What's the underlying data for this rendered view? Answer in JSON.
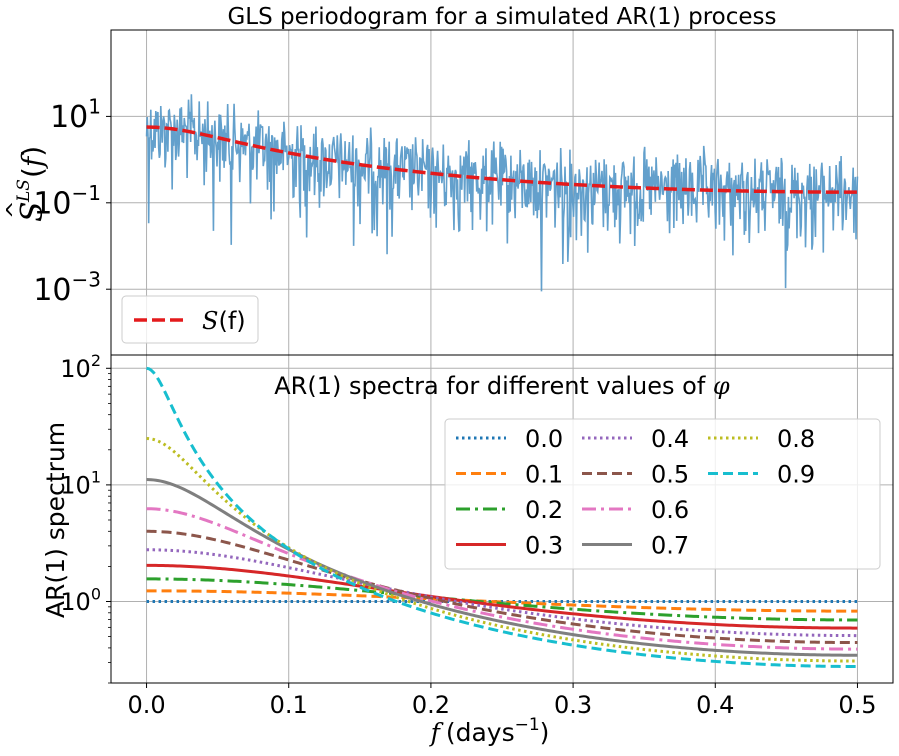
{
  "chart_data": [
    {
      "type": "line",
      "title": "GLS periodogram for a simulated AR(1) process",
      "xlabel": "",
      "ylabel": "Ŝ^{LS}(f)",
      "yscale": "log",
      "xlim": [
        -0.025,
        0.525
      ],
      "ylim": [
        3e-05,
        1000
      ],
      "yticks": [
        {
          "value": 10,
          "base": "10",
          "exp": "1"
        },
        {
          "value": 0.1,
          "base": "10",
          "exp": "−1"
        },
        {
          "value": 0.001,
          "base": "10",
          "exp": "−3"
        }
      ],
      "grid": true,
      "legend": {
        "position": "bottom-left",
        "entries": [
          {
            "label": "S(f)",
            "label_main": "S",
            "label_args": "(f)"
          }
        ]
      },
      "series": [
        {
          "name": "periodogram",
          "color": "#5b9bc9",
          "n_points": 1000,
          "x_range": [
            0.0,
            0.5
          ],
          "description": "noisy GLS periodogram, median follows S(f)"
        },
        {
          "name": "S(f)",
          "color": "#e41a1c",
          "dash": "dashed",
          "phi": 0.7,
          "sigma2": 0.51,
          "x_range": [
            0.0,
            0.5
          ]
        }
      ]
    },
    {
      "type": "line",
      "title": "AR(1) spectra for different values of φ",
      "title_text": "AR(1) spectra for different values of ",
      "title_symbol": "φ",
      "xlabel": "f (days^{-1})",
      "xlabel_var": "f",
      "xlabel_unit": "(days",
      "xlabel_exp": "−1",
      "xlabel_close": ")",
      "ylabel": "AR(1) spectrum",
      "yscale": "log",
      "xlim": [
        -0.025,
        0.525
      ],
      "ylim": [
        0.2,
        130
      ],
      "xticks": [
        {
          "value": 0.0,
          "label": "0.0"
        },
        {
          "value": 0.1,
          "label": "0.1"
        },
        {
          "value": 0.2,
          "label": "0.2"
        },
        {
          "value": 0.3,
          "label": "0.3"
        },
        {
          "value": 0.4,
          "label": "0.4"
        },
        {
          "value": 0.5,
          "label": "0.5"
        }
      ],
      "yticks": [
        {
          "value": 100,
          "base": "10",
          "exp": "2"
        },
        {
          "value": 10,
          "base": "10",
          "exp": "1"
        },
        {
          "value": 1,
          "base": "10",
          "exp": "0"
        }
      ],
      "grid": true,
      "legend": {
        "position": "top-right",
        "columns": 3
      },
      "series": [
        {
          "name": "0.0",
          "phi": 0.0,
          "color": "#1f77b4",
          "style": "dotted"
        },
        {
          "name": "0.1",
          "phi": 0.1,
          "color": "#ff7f0e",
          "style": "dashed"
        },
        {
          "name": "0.2",
          "phi": 0.2,
          "color": "#2ca02c",
          "style": "dashdot"
        },
        {
          "name": "0.3",
          "phi": 0.3,
          "color": "#d62728",
          "style": "solid"
        },
        {
          "name": "0.4",
          "phi": 0.4,
          "color": "#9467bd",
          "style": "dotted"
        },
        {
          "name": "0.5",
          "phi": 0.5,
          "color": "#8c564b",
          "style": "dashed"
        },
        {
          "name": "0.6",
          "phi": 0.6,
          "color": "#e377c2",
          "style": "dashdot"
        },
        {
          "name": "0.7",
          "phi": 0.7,
          "color": "#7f7f7f",
          "style": "solid"
        },
        {
          "name": "0.8",
          "phi": 0.8,
          "color": "#bcbd22",
          "style": "dotted"
        },
        {
          "name": "0.9",
          "phi": 0.9,
          "color": "#17becf",
          "style": "dashed"
        }
      ]
    }
  ]
}
